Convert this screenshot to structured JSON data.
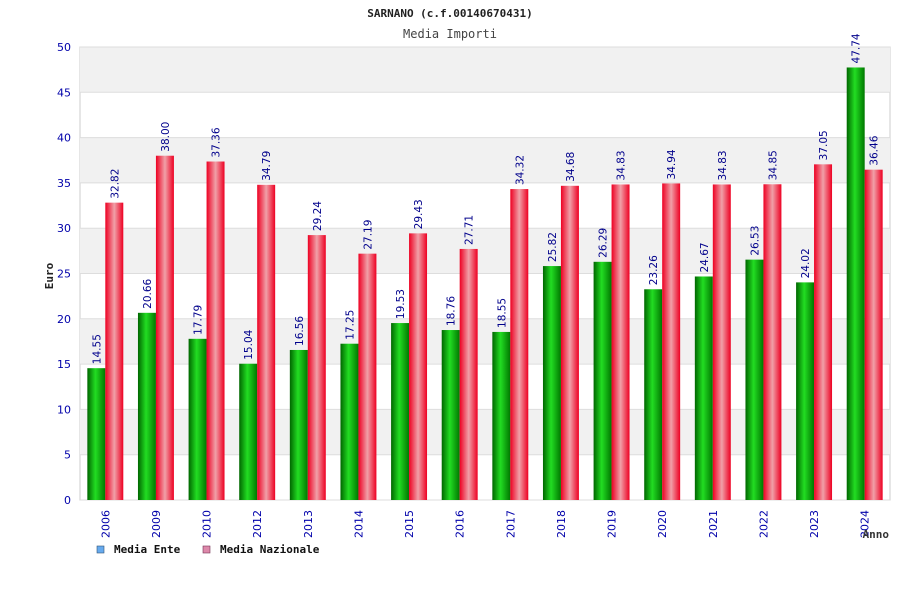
{
  "chart_data": {
    "type": "bar",
    "title": "SARNANO (c.f.00140670431)",
    "subtitle": "Media Importi",
    "xlabel": "Anno",
    "ylabel": "Euro",
    "ylim": [
      0,
      50
    ],
    "yticks": [
      "0",
      "5",
      "10",
      "15",
      "20",
      "25",
      "30",
      "35",
      "40",
      "45",
      "50"
    ],
    "grid": true,
    "legend_position": "bottom-left",
    "categories": [
      "2006",
      "2009",
      "2010",
      "2012",
      "2013",
      "2014",
      "2015",
      "2016",
      "2017",
      "2018",
      "2019",
      "2020",
      "2021",
      "2022",
      "2023",
      "2024"
    ],
    "series": [
      {
        "name": "Media Ente",
        "color": "#00aa00",
        "legend_color": "#66aaee",
        "values": [
          14.55,
          20.66,
          17.79,
          15.04,
          16.56,
          17.25,
          19.53,
          18.76,
          18.55,
          25.82,
          26.29,
          23.26,
          24.67,
          26.53,
          24.02,
          47.74
        ],
        "labels": [
          "14.55",
          "20.66",
          "17.79",
          "15.04",
          "16.56",
          "17.25",
          "19.53",
          "18.76",
          "18.55",
          "25.82",
          "26.29",
          "23.26",
          "24.67",
          "26.53",
          "24.02",
          "47.74"
        ]
      },
      {
        "name": "Media Nazionale",
        "color": "#ee0022",
        "legend_color": "#dd88aa",
        "values": [
          32.82,
          38.0,
          37.36,
          34.79,
          29.24,
          27.19,
          29.43,
          27.71,
          34.32,
          34.68,
          34.83,
          34.94,
          34.83,
          34.85,
          37.05,
          36.46
        ],
        "labels": [
          "32.82",
          "38.00",
          "37.36",
          "34.79",
          "29.24",
          "27.19",
          "29.43",
          "27.71",
          "34.32",
          "34.68",
          "34.83",
          "34.94",
          "34.83",
          "34.85",
          "37.05",
          "36.46"
        ]
      }
    ]
  }
}
